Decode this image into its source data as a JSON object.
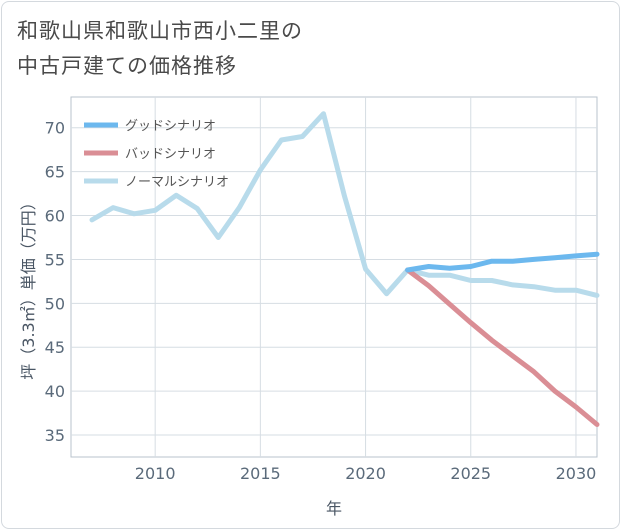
{
  "title_lines": [
    "和歌山県和歌山市西小二里の",
    "中古戸建ての価格推移"
  ],
  "chart_data": {
    "type": "line",
    "title": "和歌山県和歌山市西小二里の中古戸建ての価格推移",
    "xlabel": "年",
    "ylabel": "坪（3.3㎡）単価（万円）",
    "xlim": [
      2006,
      2031
    ],
    "ylim": [
      32.5,
      73.5
    ],
    "xticks": [
      2010,
      2015,
      2020,
      2025,
      2030
    ],
    "yticks": [
      35,
      40,
      45,
      50,
      55,
      60,
      65,
      70
    ],
    "grid": true,
    "legend_position": "top-left",
    "series": [
      {
        "name": "グッドシナリオ",
        "color": "#6cb8ee",
        "x": [
          2022,
          2023,
          2024,
          2025,
          2026,
          2027,
          2028,
          2029,
          2030,
          2031
        ],
        "y": [
          53.8,
          54.2,
          54.0,
          54.2,
          54.8,
          54.8,
          55.0,
          55.2,
          55.4,
          55.6
        ]
      },
      {
        "name": "バッドシナリオ",
        "color": "#da8e95",
        "x": [
          2022,
          2023,
          2024,
          2025,
          2026,
          2027,
          2028,
          2029,
          2030,
          2031
        ],
        "y": [
          53.8,
          52.0,
          49.9,
          47.8,
          45.8,
          44.0,
          42.2,
          40.0,
          38.2,
          36.2
        ]
      },
      {
        "name": "ノーマルシナリオ",
        "color": "#b8dbeb",
        "x": [
          2007,
          2008,
          2009,
          2010,
          2011,
          2012,
          2013,
          2014,
          2015,
          2016,
          2017,
          2018,
          2019,
          2020,
          2021,
          2022,
          2023,
          2024,
          2025,
          2026,
          2027,
          2028,
          2029,
          2030,
          2031
        ],
        "y": [
          59.5,
          60.9,
          60.2,
          60.6,
          62.3,
          60.8,
          57.5,
          60.9,
          65.2,
          68.6,
          69.0,
          71.6,
          62.2,
          53.9,
          51.1,
          53.8,
          53.2,
          53.2,
          52.6,
          52.6,
          52.1,
          51.9,
          51.5,
          51.5,
          50.9
        ]
      }
    ]
  }
}
